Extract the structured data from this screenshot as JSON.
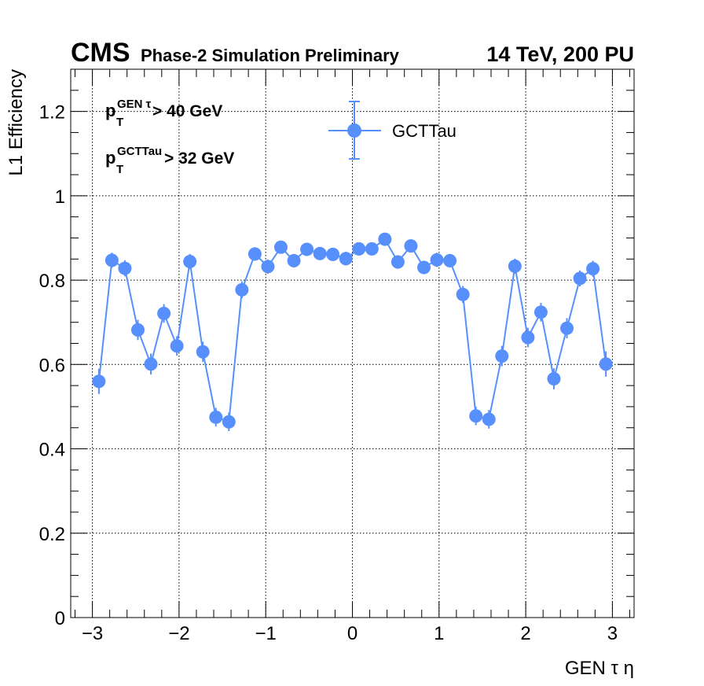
{
  "header": {
    "experiment": "CMS",
    "status": "Phase-2 Simulation Preliminary",
    "conditions": "14 TeV, 200 PU"
  },
  "cuts": {
    "gen": {
      "p": "p",
      "sub": "T",
      "sup": "GEN τ",
      "rest": " > 40 GeV"
    },
    "reco": {
      "p": "p",
      "sub": "T",
      "sup": "GCTTau",
      "rest": " > 32 GeV"
    }
  },
  "colors": {
    "series": "#5790fc",
    "grid": "#000000"
  },
  "chart_data": {
    "type": "scatter",
    "xlabel": "GEN τ η",
    "ylabel": "L1 Efficiency",
    "xlim": [
      -3.25,
      3.25
    ],
    "ylim": [
      0,
      1.3
    ],
    "grid": true,
    "legend": "top-center",
    "xticks": [
      -3,
      -2,
      -1,
      0,
      1,
      2,
      3
    ],
    "xtick_labels": [
      "−3",
      "−2",
      "−1",
      "0",
      "1",
      "2",
      "3"
    ],
    "yticks": [
      0,
      0.2,
      0.4,
      0.6,
      0.8,
      1,
      1.2
    ],
    "ytick_labels": [
      "0",
      "0.2",
      "0.4",
      "0.6",
      "0.8",
      "1",
      "1.2"
    ],
    "series": [
      {
        "name": "GCTTau",
        "x": [
          -2.925,
          -2.775,
          -2.625,
          -2.475,
          -2.325,
          -2.175,
          -2.025,
          -1.875,
          -1.725,
          -1.575,
          -1.425,
          -1.275,
          -1.125,
          -0.975,
          -0.825,
          -0.675,
          -0.525,
          -0.375,
          -0.225,
          -0.075,
          0.075,
          0.225,
          0.375,
          0.525,
          0.675,
          0.825,
          0.975,
          1.125,
          1.275,
          1.425,
          1.575,
          1.725,
          1.875,
          2.025,
          2.175,
          2.325,
          2.475,
          2.625,
          2.775,
          2.925
        ],
        "y": [
          0.56,
          0.847,
          0.828,
          0.682,
          0.601,
          0.721,
          0.644,
          0.844,
          0.63,
          0.475,
          0.464,
          0.777,
          0.862,
          0.832,
          0.878,
          0.846,
          0.873,
          0.863,
          0.861,
          0.851,
          0.874,
          0.874,
          0.897,
          0.843,
          0.881,
          0.83,
          0.848,
          0.846,
          0.766,
          0.478,
          0.47,
          0.62,
          0.833,
          0.664,
          0.724,
          0.566,
          0.686,
          0.804,
          0.827,
          0.601
        ],
        "err": [
          0.03,
          0.018,
          0.019,
          0.024,
          0.025,
          0.022,
          0.023,
          0.018,
          0.024,
          0.022,
          0.022,
          0.02,
          0.016,
          0.017,
          0.015,
          0.016,
          0.015,
          0.015,
          0.015,
          0.016,
          0.015,
          0.015,
          0.014,
          0.016,
          0.015,
          0.016,
          0.017,
          0.016,
          0.02,
          0.022,
          0.022,
          0.024,
          0.018,
          0.023,
          0.022,
          0.025,
          0.024,
          0.019,
          0.019,
          0.03
        ]
      }
    ]
  }
}
